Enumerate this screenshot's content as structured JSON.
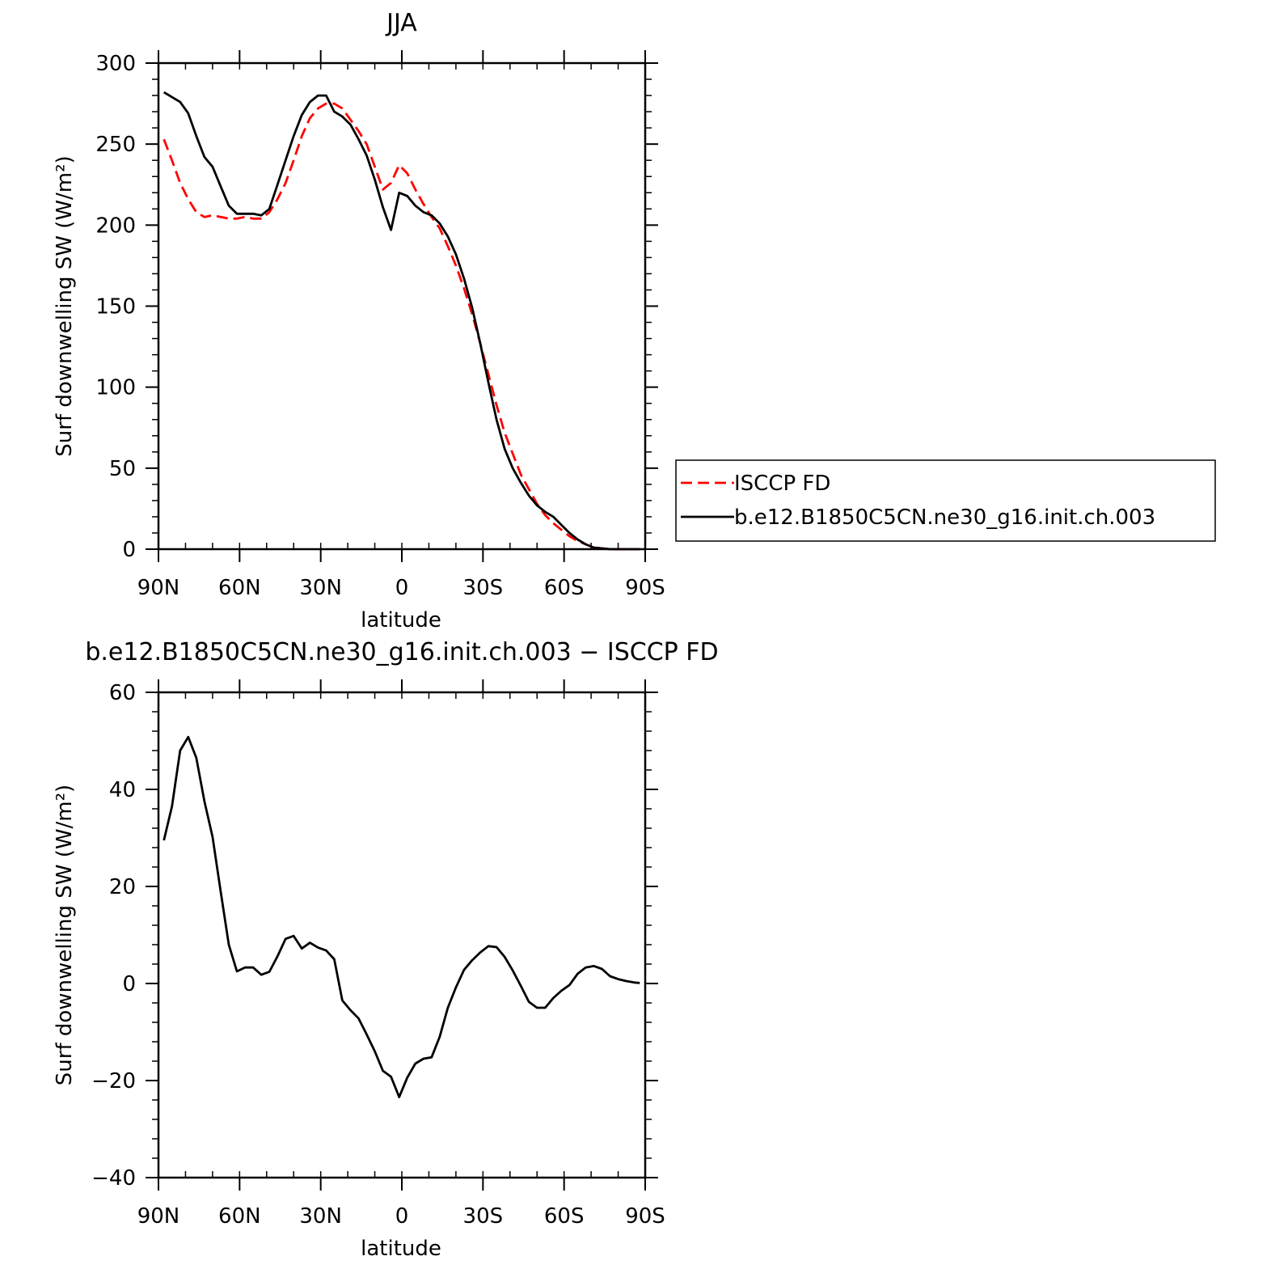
{
  "chart_data": [
    {
      "type": "line",
      "title": "JJA",
      "xlabel": "latitude",
      "ylabel": "Surf downwelling SW (W/m²)",
      "xlim": [
        90,
        -90
      ],
      "ylim": [
        0,
        300
      ],
      "xticks": [
        90,
        60,
        30,
        0,
        -30,
        -60,
        -90
      ],
      "xtick_labels": [
        "90N",
        "60N",
        "30N",
        "0",
        "30S",
        "60S",
        "90S"
      ],
      "yticks": [
        0,
        50,
        100,
        150,
        200,
        250,
        300
      ],
      "ytick_labels": [
        "0",
        "50",
        "100",
        "150",
        "200",
        "250",
        "300"
      ],
      "legend_position": "right",
      "series": [
        {
          "name": "ISCCP FD",
          "color": "#ff0000",
          "dash": "dashed",
          "x": [
            88,
            85,
            82,
            79,
            76,
            73,
            70,
            67,
            64,
            61,
            58,
            55,
            52,
            49,
            46,
            43,
            40,
            37,
            34,
            31,
            28,
            25,
            22,
            19,
            16,
            13,
            10,
            7,
            4,
            1,
            -2,
            -5,
            -8,
            -11,
            -14,
            -17,
            -20,
            -23,
            -26,
            -29,
            -32,
            -35,
            -38,
            -41,
            -44,
            -47,
            -50,
            -53,
            -56,
            -59,
            -62,
            -65,
            -68,
            -71,
            -74,
            -77,
            -80,
            -83,
            -86,
            -88
          ],
          "y": [
            253,
            240,
            226,
            216,
            208,
            205,
            206,
            205,
            204,
            204,
            205,
            204,
            204,
            208,
            216,
            226,
            240,
            255,
            266,
            272,
            275,
            275,
            272,
            265,
            258,
            250,
            236,
            222,
            226,
            237,
            232,
            222,
            213,
            205,
            198,
            187,
            175,
            161,
            145,
            127,
            108,
            89,
            72,
            59,
            46,
            37,
            28,
            21,
            16,
            12,
            8,
            5,
            3,
            1,
            0.5,
            0,
            0,
            0,
            0,
            0
          ]
        },
        {
          "name": "b.e12.B1850C5CN.ne30_g16.init.ch.003",
          "color": "#000000",
          "dash": "solid",
          "x": [
            88,
            85,
            82,
            79,
            76,
            73,
            70,
            67,
            64,
            61,
            58,
            55,
            52,
            49,
            46,
            43,
            40,
            37,
            34,
            31,
            28,
            25,
            22,
            19,
            16,
            13,
            10,
            7,
            4,
            1,
            -2,
            -5,
            -8,
            -11,
            -14,
            -17,
            -20,
            -23,
            -26,
            -29,
            -32,
            -35,
            -38,
            -41,
            -44,
            -47,
            -50,
            -53,
            -56,
            -59,
            -62,
            -65,
            -68,
            -71,
            -74,
            -77,
            -80,
            -83,
            -86,
            -88
          ],
          "y": [
            282,
            279,
            276,
            269,
            255,
            242,
            236,
            224,
            212,
            207,
            207,
            207,
            206,
            210,
            225,
            240,
            255,
            268,
            276,
            280,
            280,
            270,
            267,
            262,
            253,
            243,
            228,
            211,
            197,
            220,
            218,
            212,
            208,
            206,
            201,
            193,
            182,
            167,
            149,
            127,
            103,
            80,
            62,
            50,
            41,
            33,
            27,
            23,
            20,
            15,
            10,
            6,
            3,
            1,
            0.5,
            0,
            0,
            0,
            0,
            0
          ]
        }
      ]
    },
    {
      "type": "line",
      "title": "b.e12.B1850C5CN.ne30_g16.init.ch.003 − ISCCP FD",
      "xlabel": "latitude",
      "ylabel": "Surf downwelling SW (W/m²)",
      "xlim": [
        90,
        -90
      ],
      "ylim": [
        -40,
        60
      ],
      "xticks": [
        90,
        60,
        30,
        0,
        -30,
        -60,
        -90
      ],
      "xtick_labels": [
        "90N",
        "60N",
        "30N",
        "0",
        "30S",
        "60S",
        "90S"
      ],
      "yticks": [
        -40,
        -20,
        0,
        20,
        40,
        60
      ],
      "ytick_labels": [
        "−40",
        "−20",
        "0",
        "20",
        "40",
        "60"
      ],
      "series": [
        {
          "color": "#000000",
          "dash": "solid",
          "x": [
            88,
            85,
            82,
            79,
            76,
            73,
            70,
            67,
            64,
            61,
            58,
            55,
            52,
            49,
            46,
            43,
            40,
            37,
            34,
            31,
            28,
            25,
            22,
            19,
            16,
            13,
            10,
            7,
            4,
            1,
            -2,
            -5,
            -8,
            -11,
            -14,
            -17,
            -20,
            -23,
            -26,
            -29,
            -32,
            -35,
            -38,
            -41,
            -44,
            -47,
            -50,
            -53,
            -56,
            -59,
            -62,
            -65,
            -68,
            -71,
            -74,
            -77,
            -80,
            -83,
            -86,
            -88
          ],
          "y": [
            29.5,
            36.5,
            48,
            50.8,
            46.5,
            37.5,
            30.2,
            19,
            8,
            2.5,
            3.3,
            3.3,
            1.8,
            2.4,
            5.6,
            9.2,
            9.8,
            7.2,
            8.4,
            7.4,
            6.8,
            5,
            -3.5,
            -5.5,
            -7.2,
            -10.5,
            -14,
            -18,
            -19.2,
            -23.4,
            -19.4,
            -16.5,
            -15.5,
            -15.2,
            -11,
            -5,
            -0.8,
            2.8,
            4.8,
            6.4,
            7.7,
            7.5,
            5.5,
            2.7,
            -0.5,
            -3.8,
            -5,
            -5,
            -3,
            -1.5,
            -0.3,
            2,
            3.3,
            3.6,
            3,
            1.5,
            0.9,
            0.5,
            0.2,
            0.1
          ]
        }
      ]
    }
  ]
}
